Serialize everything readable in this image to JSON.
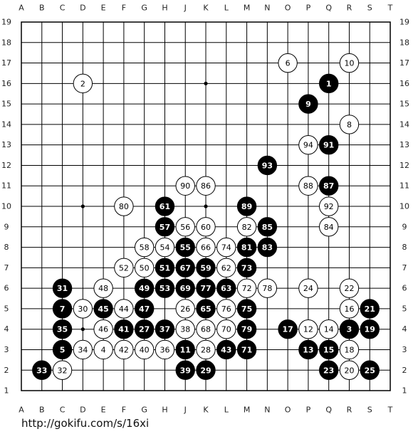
{
  "columns": [
    "A",
    "B",
    "C",
    "D",
    "E",
    "F",
    "G",
    "H",
    "J",
    "K",
    "L",
    "M",
    "N",
    "O",
    "P",
    "Q",
    "R",
    "S",
    "T"
  ],
  "rows": [
    "19",
    "18",
    "17",
    "16",
    "15",
    "14",
    "13",
    "12",
    "11",
    "10",
    "9",
    "8",
    "7",
    "6",
    "5",
    "4",
    "3",
    "2",
    "1"
  ],
  "stones": [
    {
      "point": "O17",
      "color": "white",
      "label": "6"
    },
    {
      "point": "R17",
      "color": "white",
      "label": "10"
    },
    {
      "point": "D16",
      "color": "white",
      "label": "2"
    },
    {
      "point": "Q16",
      "color": "black",
      "label": "1"
    },
    {
      "point": "P15",
      "color": "black",
      "label": "9"
    },
    {
      "point": "R14",
      "color": "white",
      "label": "8"
    },
    {
      "point": "P13",
      "color": "white",
      "label": "94"
    },
    {
      "point": "Q13",
      "color": "black",
      "label": "91"
    },
    {
      "point": "N12",
      "color": "black",
      "label": "93"
    },
    {
      "point": "J11",
      "color": "white",
      "label": "90"
    },
    {
      "point": "K11",
      "color": "white",
      "label": "86"
    },
    {
      "point": "P11",
      "color": "white",
      "label": "88"
    },
    {
      "point": "Q11",
      "color": "black",
      "label": "87"
    },
    {
      "point": "F10",
      "color": "white",
      "label": "80"
    },
    {
      "point": "H10",
      "color": "black",
      "label": "61"
    },
    {
      "point": "M10",
      "color": "black",
      "label": "89"
    },
    {
      "point": "Q10",
      "color": "white",
      "label": "92"
    },
    {
      "point": "H9",
      "color": "black",
      "label": "57"
    },
    {
      "point": "J9",
      "color": "white",
      "label": "56"
    },
    {
      "point": "K9",
      "color": "white",
      "label": "60"
    },
    {
      "point": "M9",
      "color": "white",
      "label": "82"
    },
    {
      "point": "N9",
      "color": "black",
      "label": "85"
    },
    {
      "point": "Q9",
      "color": "white",
      "label": "84"
    },
    {
      "point": "G8",
      "color": "white",
      "label": "58"
    },
    {
      "point": "H8",
      "color": "white",
      "label": "54"
    },
    {
      "point": "J8",
      "color": "black",
      "label": "55"
    },
    {
      "point": "K8",
      "color": "white",
      "label": "66"
    },
    {
      "point": "L8",
      "color": "white",
      "label": "74"
    },
    {
      "point": "M8",
      "color": "black",
      "label": "81"
    },
    {
      "point": "N8",
      "color": "black",
      "label": "83"
    },
    {
      "point": "F7",
      "color": "white",
      "label": "52"
    },
    {
      "point": "G7",
      "color": "white",
      "label": "50"
    },
    {
      "point": "H7",
      "color": "black",
      "label": "51"
    },
    {
      "point": "J7",
      "color": "black",
      "label": "67"
    },
    {
      "point": "K7",
      "color": "black",
      "label": "59"
    },
    {
      "point": "L7",
      "color": "white",
      "label": "62"
    },
    {
      "point": "M7",
      "color": "black",
      "label": "73"
    },
    {
      "point": "C6",
      "color": "black",
      "label": "31"
    },
    {
      "point": "E6",
      "color": "white",
      "label": "48"
    },
    {
      "point": "G6",
      "color": "black",
      "label": "49"
    },
    {
      "point": "H6",
      "color": "black",
      "label": "53"
    },
    {
      "point": "J6",
      "color": "black",
      "label": "69"
    },
    {
      "point": "K6",
      "color": "black",
      "label": "77"
    },
    {
      "point": "L6",
      "color": "black",
      "label": "63"
    },
    {
      "point": "M6",
      "color": "white",
      "label": "72"
    },
    {
      "point": "N6",
      "color": "white",
      "label": "78"
    },
    {
      "point": "P6",
      "color": "white",
      "label": "24"
    },
    {
      "point": "R6",
      "color": "white",
      "label": "22"
    },
    {
      "point": "C5",
      "color": "black",
      "label": "7"
    },
    {
      "point": "D5",
      "color": "white",
      "label": "30"
    },
    {
      "point": "E5",
      "color": "black",
      "label": "45"
    },
    {
      "point": "F5",
      "color": "white",
      "label": "44"
    },
    {
      "point": "G5",
      "color": "black",
      "label": "47"
    },
    {
      "point": "J5",
      "color": "white",
      "label": "26"
    },
    {
      "point": "K5",
      "color": "black",
      "label": "65"
    },
    {
      "point": "L5",
      "color": "white",
      "label": "76"
    },
    {
      "point": "M5",
      "color": "black",
      "label": "75"
    },
    {
      "point": "R5",
      "color": "white",
      "label": "16"
    },
    {
      "point": "S5",
      "color": "black",
      "label": "21"
    },
    {
      "point": "C4",
      "color": "black",
      "label": "35"
    },
    {
      "point": "E4",
      "color": "white",
      "label": "46"
    },
    {
      "point": "F4",
      "color": "black",
      "label": "41"
    },
    {
      "point": "G4",
      "color": "black",
      "label": "27"
    },
    {
      "point": "H4",
      "color": "black",
      "label": "37"
    },
    {
      "point": "J4",
      "color": "white",
      "label": "38"
    },
    {
      "point": "K4",
      "color": "white",
      "label": "68"
    },
    {
      "point": "L4",
      "color": "white",
      "label": "70"
    },
    {
      "point": "M4",
      "color": "black",
      "label": "79"
    },
    {
      "point": "O4",
      "color": "black",
      "label": "17"
    },
    {
      "point": "P4",
      "color": "white",
      "label": "12"
    },
    {
      "point": "Q4",
      "color": "white",
      "label": "14"
    },
    {
      "point": "R4",
      "color": "black",
      "label": "3"
    },
    {
      "point": "S4",
      "color": "black",
      "label": "19"
    },
    {
      "point": "C3",
      "color": "black",
      "label": "5"
    },
    {
      "point": "D3",
      "color": "white",
      "label": "34"
    },
    {
      "point": "E3",
      "color": "white",
      "label": "4"
    },
    {
      "point": "F3",
      "color": "white",
      "label": "42"
    },
    {
      "point": "G3",
      "color": "white",
      "label": "40"
    },
    {
      "point": "H3",
      "color": "white",
      "label": "36"
    },
    {
      "point": "J3",
      "color": "black",
      "label": "11"
    },
    {
      "point": "K3",
      "color": "white",
      "label": "28"
    },
    {
      "point": "L3",
      "color": "black",
      "label": "43"
    },
    {
      "point": "M3",
      "color": "black",
      "label": "71"
    },
    {
      "point": "P3",
      "color": "black",
      "label": "13"
    },
    {
      "point": "Q3",
      "color": "black",
      "label": "15"
    },
    {
      "point": "R3",
      "color": "white",
      "label": "18"
    },
    {
      "point": "B2",
      "color": "black",
      "label": "33"
    },
    {
      "point": "C2",
      "color": "white",
      "label": "32"
    },
    {
      "point": "J2",
      "color": "black",
      "label": "39"
    },
    {
      "point": "K2",
      "color": "black",
      "label": "29"
    },
    {
      "point": "Q2",
      "color": "black",
      "label": "23"
    },
    {
      "point": "R2",
      "color": "white",
      "label": "20"
    },
    {
      "point": "S2",
      "color": "black",
      "label": "25"
    }
  ],
  "footer": "http://gokifu.com/s/16xi"
}
